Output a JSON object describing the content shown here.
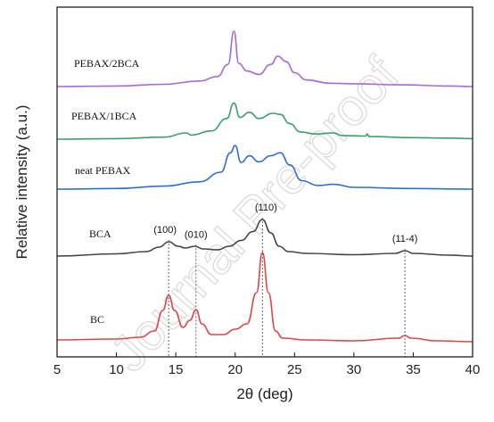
{
  "watermark": "Journal Pre-proof",
  "chart_data": {
    "type": "line",
    "xlabel": "2θ (deg)",
    "ylabel": "Relative intensity (a.u.)",
    "xlim": [
      5,
      40
    ],
    "xticks": [
      5,
      10,
      15,
      20,
      25,
      30,
      35,
      40
    ],
    "y_ticks_shown": false,
    "grid": false,
    "series": [
      {
        "name": "PEBAX/2BCA",
        "color": "#a46ad6",
        "points": [
          [
            5,
            0.0
          ],
          [
            10,
            0.01
          ],
          [
            14,
            0.04
          ],
          [
            17,
            0.1
          ],
          [
            18.5,
            0.18
          ],
          [
            19.4,
            0.4
          ],
          [
            19.9,
            1.0
          ],
          [
            20.3,
            0.42
          ],
          [
            21,
            0.28
          ],
          [
            22,
            0.22
          ],
          [
            23,
            0.4
          ],
          [
            23.6,
            0.55
          ],
          [
            24.3,
            0.45
          ],
          [
            25,
            0.25
          ],
          [
            26,
            0.12
          ],
          [
            28,
            0.06
          ],
          [
            30,
            0.05
          ],
          [
            34,
            0.03
          ],
          [
            38,
            0.01
          ],
          [
            40,
            0.0
          ]
        ]
      },
      {
        "name": "PEBAX/1BCA",
        "color": "#3aa06a",
        "points": [
          [
            5,
            0.0
          ],
          [
            10,
            0.01
          ],
          [
            14,
            0.04
          ],
          [
            15.9,
            0.12
          ],
          [
            16.3,
            0.08
          ],
          [
            18,
            0.16
          ],
          [
            19.3,
            0.4
          ],
          [
            19.9,
            0.7
          ],
          [
            20.4,
            0.42
          ],
          [
            21.2,
            0.52
          ],
          [
            22,
            0.4
          ],
          [
            23.2,
            0.5
          ],
          [
            23.8,
            0.48
          ],
          [
            24.6,
            0.3
          ],
          [
            25.5,
            0.14
          ],
          [
            26.8,
            0.1
          ],
          [
            28.3,
            0.12
          ],
          [
            29,
            0.07
          ],
          [
            31,
            0.06
          ],
          [
            31.1,
            0.1
          ],
          [
            31.3,
            0.05
          ],
          [
            35,
            0.03
          ],
          [
            38,
            0.02
          ],
          [
            40,
            0.01
          ]
        ]
      },
      {
        "name": "neat PEBAX",
        "color": "#2f6fd0",
        "points": [
          [
            5,
            0.0
          ],
          [
            10,
            0.01
          ],
          [
            14,
            0.05
          ],
          [
            17,
            0.12
          ],
          [
            18.8,
            0.28
          ],
          [
            19.6,
            0.6
          ],
          [
            20,
            0.72
          ],
          [
            20.5,
            0.44
          ],
          [
            21.2,
            0.55
          ],
          [
            22,
            0.45
          ],
          [
            23,
            0.55
          ],
          [
            23.8,
            0.6
          ],
          [
            24.6,
            0.4
          ],
          [
            25.6,
            0.14
          ],
          [
            27,
            0.06
          ],
          [
            28.3,
            0.08
          ],
          [
            30,
            0.03
          ],
          [
            35,
            0.01
          ],
          [
            40,
            0.0
          ]
        ]
      },
      {
        "name": "BCA",
        "color": "#444444",
        "points": [
          [
            5,
            0.0
          ],
          [
            10,
            0.05
          ],
          [
            12.5,
            0.1
          ],
          [
            13.6,
            0.2
          ],
          [
            14.4,
            0.32
          ],
          [
            15.2,
            0.22
          ],
          [
            15.8,
            0.18
          ],
          [
            16.6,
            0.22
          ],
          [
            17.3,
            0.16
          ],
          [
            18.5,
            0.14
          ],
          [
            19.5,
            0.22
          ],
          [
            20.5,
            0.35
          ],
          [
            21.5,
            0.55
          ],
          [
            22.3,
            0.82
          ],
          [
            23,
            0.52
          ],
          [
            23.7,
            0.22
          ],
          [
            24.5,
            0.1
          ],
          [
            26,
            0.06
          ],
          [
            30,
            0.03
          ],
          [
            33.5,
            0.06
          ],
          [
            34.3,
            0.12
          ],
          [
            35,
            0.06
          ],
          [
            38,
            0.02
          ],
          [
            40,
            0.0
          ]
        ]
      },
      {
        "name": "BC",
        "color": "#e04545",
        "points": [
          [
            5,
            0.02
          ],
          [
            10,
            0.03
          ],
          [
            12,
            0.05
          ],
          [
            13.2,
            0.12
          ],
          [
            13.9,
            0.35
          ],
          [
            14.4,
            0.52
          ],
          [
            14.9,
            0.35
          ],
          [
            15.6,
            0.16
          ],
          [
            16.2,
            0.24
          ],
          [
            16.7,
            0.36
          ],
          [
            17.2,
            0.2
          ],
          [
            18,
            0.08
          ],
          [
            19,
            0.08
          ],
          [
            20,
            0.14
          ],
          [
            21,
            0.2
          ],
          [
            21.8,
            0.55
          ],
          [
            22.3,
            1.0
          ],
          [
            22.8,
            0.55
          ],
          [
            23.4,
            0.12
          ],
          [
            24,
            0.04
          ],
          [
            26,
            0.02
          ],
          [
            30,
            0.01
          ],
          [
            33.8,
            0.04
          ],
          [
            34.3,
            0.07
          ],
          [
            34.8,
            0.04
          ],
          [
            37,
            0.01
          ],
          [
            40,
            0.0
          ]
        ]
      }
    ],
    "annotations": [
      {
        "text": "(100)",
        "x": 14.4
      },
      {
        "text": "(010)",
        "x": 16.7
      },
      {
        "text": "(110)",
        "x": 22.3
      },
      {
        "text": "(11-4)",
        "x": 34.3
      }
    ]
  }
}
